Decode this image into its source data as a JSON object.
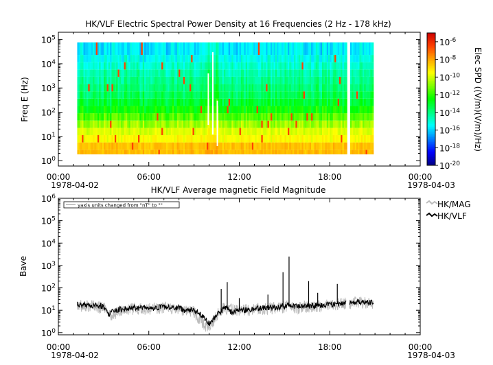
{
  "chart_data": [
    {
      "type": "heatmap",
      "title": "HK/VLF  Electric Spectral Power Density at 16 Frequencies (2 Hz - 178 kHz)",
      "xlabel": "",
      "ylabel": "Freq E (Hz)",
      "y_scale": "log",
      "ylim": [
        0.6,
        200000
      ],
      "x_ticks": [
        "00:00",
        "06:00",
        "12:00",
        "18:00",
        "00:00"
      ],
      "x_date_left": "1978-04-02",
      "x_date_right": "1978-04-03",
      "y_tick_exponents": [
        0,
        1,
        2,
        3,
        4,
        5
      ],
      "data_time_range_hours": [
        1.25,
        20.9
      ],
      "data_gaps_hours": [
        [
          19.1,
          19.3
        ]
      ],
      "frequency_bands_hz": [
        2,
        4,
        8,
        16,
        32,
        64,
        128,
        256,
        512,
        1024,
        2048,
        4096,
        8192,
        16384,
        32768,
        178000
      ],
      "typical_log10_spd_by_band": [
        -8.4,
        -8.5,
        -9.5,
        -9.9,
        -10.7,
        -11.6,
        -12.5,
        -13.1,
        -13.6,
        -13.9,
        -14.2,
        -14.5,
        -14.9,
        -15.3,
        -15.7,
        -16.0
      ],
      "colorbar": {
        "label": "Elec SPD ((V/m)(V/m)/Hz)",
        "scale": "log",
        "range": [
          1e-20,
          1e-05
        ],
        "tick_exponents": [
          -6,
          -8,
          -10,
          -12,
          -14,
          -16,
          -18,
          -20
        ],
        "colors": [
          "#000080",
          "#0000ff",
          "#0080ff",
          "#00ffff",
          "#00ff80",
          "#00ff00",
          "#80ff00",
          "#ffff00",
          "#ffa500",
          "#ff4000",
          "#cc0000"
        ]
      }
    },
    {
      "type": "line",
      "title": "HK/VLF  Average magnetic Field Magnitude",
      "xlabel": "",
      "ylabel": "Bave",
      "y_scale": "log",
      "ylim": [
        0.8,
        1000000
      ],
      "x_ticks": [
        "00:00",
        "06:00",
        "12:00",
        "18:00",
        "00:00"
      ],
      "x_date_left": "1978-04-02",
      "x_date_right": "1978-04-03",
      "y_tick_exponents": [
        0,
        1,
        2,
        3,
        4,
        5,
        6
      ],
      "annotation": "yaxis units changed from \"nT\" to \"\"",
      "legend_position": "right",
      "series": [
        {
          "name": "HK/MAG",
          "color": "#bbbbbb",
          "x_hours": [
            1.25,
            2.0,
            2.5,
            3.0,
            3.5,
            4.0,
            5.0,
            6.0,
            7.0,
            8.0,
            9.0,
            9.5,
            10.0,
            10.5,
            11.0,
            12.0,
            13.0,
            14.0,
            15.0,
            16.0,
            17.0,
            18.0,
            19.0,
            19.3,
            20.0,
            20.9
          ],
          "values": [
            16,
            15,
            14,
            13,
            5,
            9,
            12,
            11,
            13,
            12,
            8,
            3,
            1.5,
            6,
            13,
            9,
            11,
            12,
            14,
            13,
            15,
            17,
            20,
            21,
            22,
            21
          ]
        },
        {
          "name": "HK/VLF",
          "color": "#000000",
          "x_hours": [
            1.25,
            2.0,
            2.5,
            3.0,
            3.3,
            3.5,
            4.0,
            5.0,
            6.0,
            7.0,
            8.0,
            8.5,
            9.0,
            9.5,
            10.0,
            10.3,
            10.8,
            11.0,
            11.5,
            12.0,
            12.5,
            13.0,
            14.0,
            15.0,
            15.3,
            16.0,
            17.0,
            18.0,
            19.0,
            19.3,
            20.0,
            20.9
          ],
          "values": [
            18,
            17,
            16,
            15,
            6,
            8,
            11,
            13,
            12,
            14,
            13,
            9,
            11,
            6,
            2.5,
            4,
            9,
            15,
            8,
            11,
            10,
            12,
            13,
            15,
            16,
            14,
            16,
            18,
            21,
            21,
            23,
            22
          ],
          "spikes": [
            [
              10.8,
              90
            ],
            [
              11.2,
              180
            ],
            [
              12.0,
              35
            ],
            [
              13.9,
              50
            ],
            [
              14.9,
              500
            ],
            [
              15.3,
              2500
            ],
            [
              16.6,
              200
            ],
            [
              17.2,
              60
            ],
            [
              18.5,
              150
            ]
          ]
        }
      ]
    }
  ]
}
